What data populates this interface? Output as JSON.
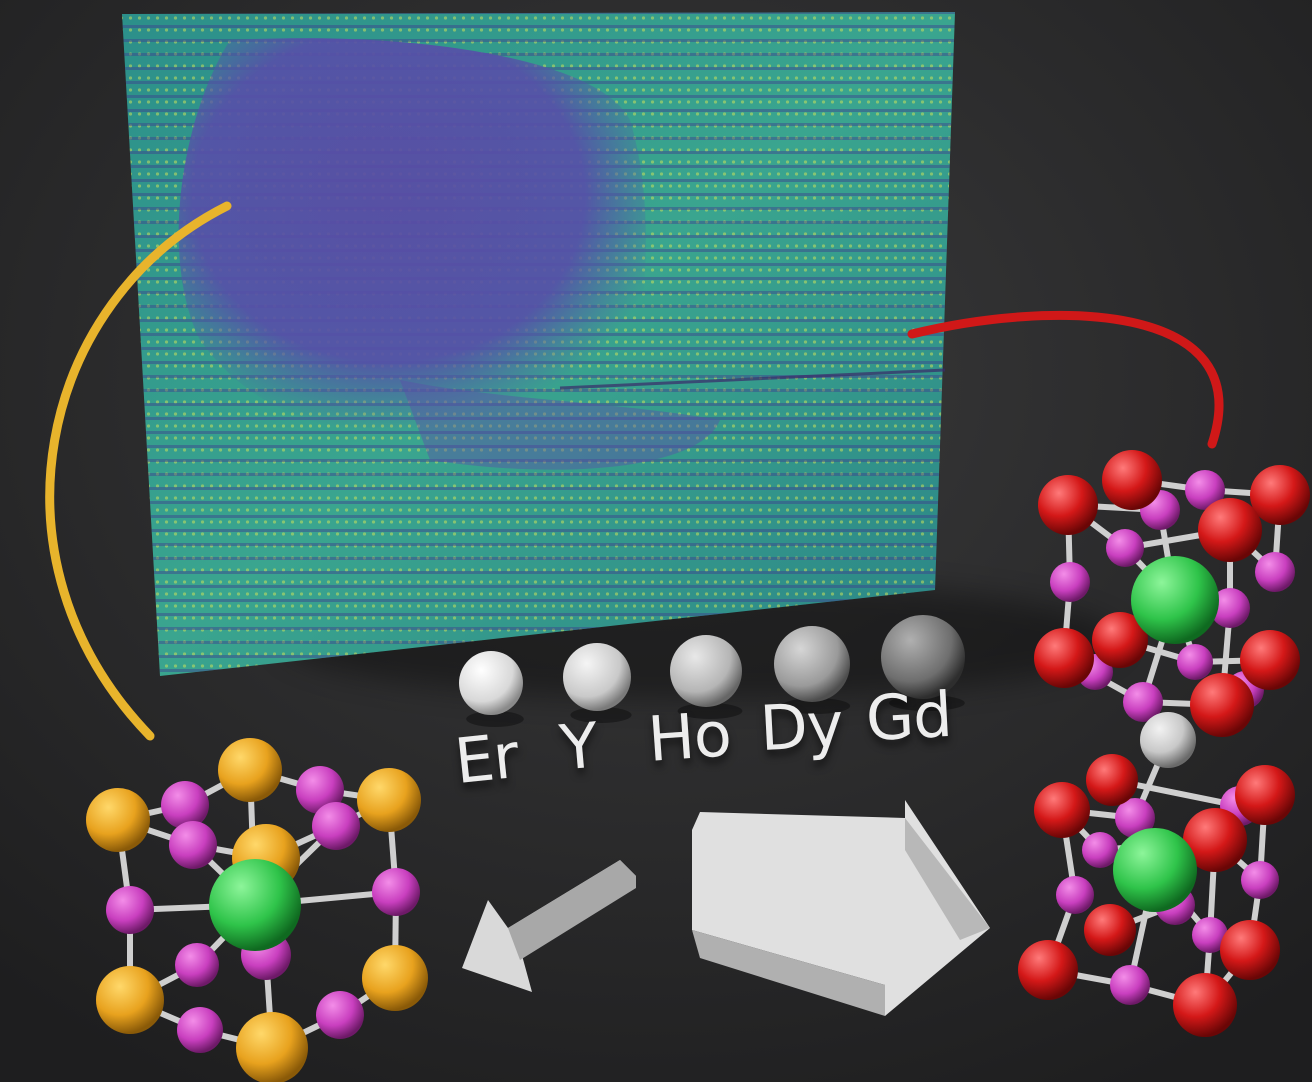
{
  "elements": [
    {
      "symbol": "Er",
      "sphere_color": "#d8d8d8"
    },
    {
      "symbol": "Y",
      "sphere_color": "#c9c9c9"
    },
    {
      "symbol": "Ho",
      "sphere_color": "#b5b5b5"
    },
    {
      "symbol": "Dy",
      "sphere_color": "#9a9a9a"
    },
    {
      "symbol": "Gd",
      "sphere_color": "#6e6e6e"
    }
  ],
  "colors": {
    "background": "#2a2a2b",
    "image_matrix": "#2f9a8f",
    "image_domain": "#5a4fa8",
    "left_connector": "#e8b42c",
    "right_connector": "#d01818",
    "left_corner_atoms": "#e8a21e",
    "small_atoms": "#c93fbf",
    "central_atoms": "#2fc44a",
    "right_corner_atoms": "#d41818",
    "link_atom": "#c8c8c8",
    "arrows": "#d9d9d9"
  }
}
